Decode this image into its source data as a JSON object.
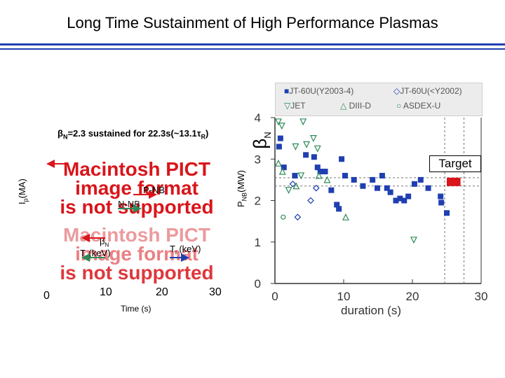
{
  "slide": {
    "title": "Long Time Sustainment of High Performance Plasmas",
    "rule_color": "#1f3fb0"
  },
  "left_panel": {
    "caption_beta": "β",
    "caption_sub": "N",
    "caption_rest": "=2.3 sustained for 22.3s(~13.1τ",
    "caption_sub2": "R",
    "caption_end": ")",
    "ip_label": "I",
    "ip_sub": "p",
    "ip_unit": "(MA)",
    "pnb_label": "P",
    "pnb_sub": "NB",
    "pnb_unit": "(MW)",
    "pict_top": [
      "Macintosh PICT",
      "image format",
      "is not supported"
    ],
    "pict_bottom": [
      "Macintosh PICT",
      "image format",
      "is not supported"
    ],
    "pnb_legend": "P-NB",
    "nnb_legend": "N-NB",
    "betaN_legend": "β",
    "betaN_sub": "N",
    "te_legend": "T",
    "te_sub": "e",
    "te_unit": "(keV)",
    "ti_legend": "T",
    "ti_sub": "i",
    "ti_unit": " (keV)",
    "x_ticks": [
      "0",
      "10",
      "20",
      "30"
    ],
    "x_label": "Time (s)",
    "pict_color": "#d9151b"
  },
  "chart_data": {
    "type": "scatter",
    "title": "",
    "xlabel": "duration (s)",
    "ylabel": "βN",
    "xlim": [
      0,
      30
    ],
    "ylim": [
      0,
      4
    ],
    "x_ticks": [
      0,
      10,
      20,
      30
    ],
    "y_ticks": [
      0,
      1,
      2,
      3,
      4
    ],
    "legend": [
      "JT-60U(Y2003-4)",
      "JT-60U(<Y2002)",
      "JET",
      "DIII-D",
      "ASDEX-U"
    ],
    "annotation": "Target",
    "target": {
      "x": [
        25,
        27
      ],
      "y": 2.45
    },
    "reference_lines": {
      "y": [
        2.55,
        2.35
      ],
      "x": [
        24.7,
        27.5
      ]
    },
    "series": [
      {
        "name": "JT-60U(Y2003-4)",
        "marker": "square",
        "color": "#1f3fb0",
        "points": [
          [
            0.6,
            3.3
          ],
          [
            0.8,
            3.5
          ],
          [
            1.3,
            2.8
          ],
          [
            2.9,
            2.6
          ],
          [
            4.5,
            3.1
          ],
          [
            5.7,
            3.05
          ],
          [
            6.2,
            2.8
          ],
          [
            6.6,
            2.7
          ],
          [
            7.3,
            2.7
          ],
          [
            8.2,
            2.25
          ],
          [
            9.0,
            1.9
          ],
          [
            9.3,
            1.8
          ],
          [
            9.7,
            3.0
          ],
          [
            10.2,
            2.6
          ],
          [
            11.5,
            2.5
          ],
          [
            12.8,
            2.35
          ],
          [
            14.2,
            2.5
          ],
          [
            14.9,
            2.3
          ],
          [
            15.6,
            2.6
          ],
          [
            16.3,
            2.3
          ],
          [
            16.8,
            2.2
          ],
          [
            17.6,
            2.0
          ],
          [
            18.2,
            2.05
          ],
          [
            18.8,
            2.0
          ],
          [
            19.4,
            2.1
          ],
          [
            20.3,
            2.4
          ],
          [
            21.2,
            2.5
          ],
          [
            22.3,
            2.3
          ],
          [
            24.1,
            2.1
          ],
          [
            24.2,
            1.95
          ],
          [
            25.0,
            1.7
          ]
        ]
      },
      {
        "name": "JT-60U(<Y2002)",
        "marker": "diamond",
        "color": "#1f3fb0",
        "points": [
          [
            2.6,
            2.4
          ],
          [
            3.3,
            1.6
          ],
          [
            5.2,
            2.0
          ],
          [
            6.0,
            2.3
          ]
        ]
      },
      {
        "name": "JET",
        "marker": "triangle-down",
        "color": "#2e8b57",
        "points": [
          [
            0.5,
            3.9
          ],
          [
            1.0,
            3.8
          ],
          [
            2.0,
            2.25
          ],
          [
            3.0,
            3.3
          ],
          [
            3.8,
            2.6
          ],
          [
            4.1,
            3.9
          ],
          [
            4.6,
            3.35
          ],
          [
            5.6,
            3.5
          ],
          [
            6.2,
            3.25
          ],
          [
            20.2,
            1.05
          ]
        ]
      },
      {
        "name": "DIII-D",
        "marker": "triangle-up",
        "color": "#2e8b57",
        "points": [
          [
            0.5,
            2.9
          ],
          [
            1.1,
            2.7
          ],
          [
            3.1,
            2.35
          ],
          [
            6.4,
            2.6
          ],
          [
            7.6,
            2.5
          ],
          [
            10.3,
            1.6
          ]
        ]
      },
      {
        "name": "ASDEX-U",
        "marker": "circle",
        "color": "#2e8b57",
        "points": [
          [
            1.2,
            1.6
          ]
        ]
      }
    ]
  }
}
